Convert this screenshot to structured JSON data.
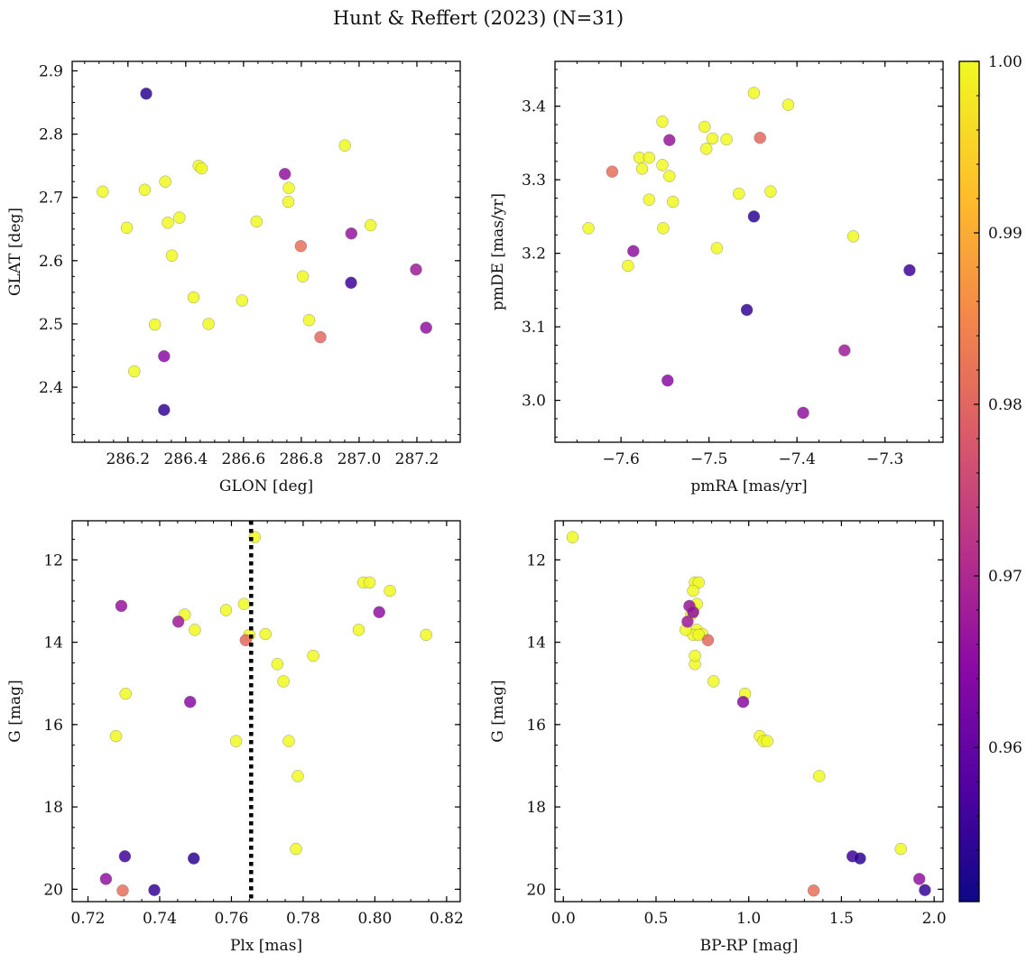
{
  "chart_data": {
    "title": "Hunt & Reffert (2023) (N=31)",
    "type": "scatter",
    "colorbar": {
      "min": 0.951,
      "max": 1.0,
      "ticks": [
        0.96,
        0.97,
        0.98,
        0.99,
        1.0
      ],
      "tick_labels": [
        "0.96",
        "0.97",
        "0.98",
        "0.99",
        "1.00"
      ],
      "colormap": [
        "#0d0887",
        "#5302a3",
        "#8b0aa5",
        "#b83289",
        "#db5c68",
        "#f48849",
        "#febd2a",
        "#f0f921"
      ]
    },
    "members": [
      {
        "glon": 286.263,
        "glat": 2.864,
        "pmra": -7.449,
        "pmde": 3.25,
        "plx": 0.7495,
        "bprp": 1.6,
        "g": 19.25,
        "prob": 0.954
      },
      {
        "glon": 286.325,
        "glat": 2.364,
        "pmra": -7.457,
        "pmde": 3.123,
        "plx": 0.7385,
        "bprp": 1.95,
        "g": 20.02,
        "prob": 0.955
      },
      {
        "glon": 286.972,
        "glat": 2.565,
        "pmra": -7.272,
        "pmde": 3.177,
        "plx": 0.7303,
        "bprp": 1.56,
        "g": 19.2,
        "prob": 0.956
      },
      {
        "glon": 286.743,
        "glat": 2.737,
        "pmra": -7.586,
        "pmde": 3.203,
        "plx": 0.725,
        "bprp": 1.92,
        "g": 19.75,
        "prob": 0.966
      },
      {
        "glon": 286.325,
        "glat": 2.449,
        "pmra": -7.547,
        "pmde": 3.027,
        "plx": 0.7485,
        "bprp": 0.97,
        "g": 15.45,
        "prob": 0.965
      },
      {
        "glon": 286.973,
        "glat": 2.643,
        "pmra": -7.545,
        "pmde": 3.354,
        "plx": 0.7293,
        "bprp": 0.68,
        "g": 13.12,
        "prob": 0.967
      },
      {
        "glon": 287.197,
        "glat": 2.586,
        "pmra": -7.346,
        "pmde": 3.068,
        "plx": 0.7452,
        "bprp": 0.67,
        "g": 13.5,
        "prob": 0.968
      },
      {
        "glon": 287.232,
        "glat": 2.494,
        "pmra": -7.393,
        "pmde": 2.983,
        "plx": 0.8012,
        "bprp": 0.7,
        "g": 13.27,
        "prob": 0.966
      },
      {
        "glon": 286.798,
        "glat": 2.623,
        "pmra": -7.61,
        "pmde": 3.311,
        "plx": 0.7297,
        "bprp": 1.35,
        "g": 20.03,
        "prob": 0.982
      },
      {
        "glon": 286.866,
        "glat": 2.479,
        "pmra": -7.442,
        "pmde": 3.357,
        "plx": 0.764,
        "bprp": 0.78,
        "g": 13.95,
        "prob": 0.981
      },
      {
        "glon": 286.113,
        "glat": 2.709,
        "pmra": -7.637,
        "pmde": 3.234,
        "plx": 0.7278,
        "bprp": 1.06,
        "g": 16.28,
        "prob": 1.0
      },
      {
        "glon": 286.196,
        "glat": 2.652,
        "pmra": -7.592,
        "pmde": 3.183,
        "plx": 0.7305,
        "bprp": 0.98,
        "g": 15.25,
        "prob": 1.0
      },
      {
        "glon": 286.222,
        "glat": 2.425,
        "pmra": -7.579,
        "pmde": 3.33,
        "plx": 0.747,
        "bprp": 0.69,
        "g": 13.33,
        "prob": 1.0
      },
      {
        "glon": 286.258,
        "glat": 2.712,
        "pmra": -7.576,
        "pmde": 3.315,
        "plx": 0.7498,
        "bprp": 0.72,
        "g": 13.7,
        "prob": 1.0
      },
      {
        "glon": 286.293,
        "glat": 2.499,
        "pmra": -7.568,
        "pmde": 3.33,
        "plx": 0.7585,
        "bprp": 0.7,
        "g": 13.22,
        "prob": 1.0
      },
      {
        "glon": 286.329,
        "glat": 2.725,
        "pmra": -7.568,
        "pmde": 3.273,
        "plx": 0.7635,
        "bprp": 0.72,
        "g": 13.07,
        "prob": 1.0
      },
      {
        "glon": 286.338,
        "glat": 2.66,
        "pmra": -7.553,
        "pmde": 3.379,
        "plx": 0.7665,
        "bprp": 0.05,
        "g": 11.45,
        "prob": 1.0
      },
      {
        "glon": 286.352,
        "glat": 2.608,
        "pmra": -7.553,
        "pmde": 3.32,
        "plx": 0.7695,
        "bprp": 0.75,
        "g": 13.8,
        "prob": 1.0
      },
      {
        "glon": 286.378,
        "glat": 2.668,
        "pmra": -7.552,
        "pmde": 3.234,
        "plx": 0.765,
        "bprp": 0.7,
        "g": 13.82,
        "prob": 1.0
      },
      {
        "glon": 286.427,
        "glat": 2.542,
        "pmra": -7.545,
        "pmde": 3.305,
        "plx": 0.7745,
        "bprp": 0.81,
        "g": 14.95,
        "prob": 1.0
      },
      {
        "glon": 286.445,
        "glat": 2.75,
        "pmra": -7.541,
        "pmde": 3.27,
        "plx": 0.7728,
        "bprp": 0.71,
        "g": 14.53,
        "prob": 1.0
      },
      {
        "glon": 286.455,
        "glat": 2.746,
        "pmra": -7.505,
        "pmde": 3.372,
        "plx": 0.7828,
        "bprp": 0.71,
        "g": 14.33,
        "prob": 1.0
      },
      {
        "glon": 286.479,
        "glat": 2.5,
        "pmra": -7.503,
        "pmde": 3.342,
        "plx": 0.7955,
        "bprp": 0.66,
        "g": 13.7,
        "prob": 1.0
      },
      {
        "glon": 286.595,
        "glat": 2.537,
        "pmra": -7.496,
        "pmde": 3.356,
        "plx": 0.7968,
        "bprp": 0.71,
        "g": 12.55,
        "prob": 1.0
      },
      {
        "glon": 286.645,
        "glat": 2.662,
        "pmra": -7.491,
        "pmde": 3.207,
        "plx": 0.7985,
        "bprp": 0.73,
        "g": 12.55,
        "prob": 1.0
      },
      {
        "glon": 286.757,
        "glat": 2.715,
        "pmra": -7.48,
        "pmde": 3.355,
        "plx": 0.8042,
        "bprp": 0.7,
        "g": 12.75,
        "prob": 1.0
      },
      {
        "glon": 286.755,
        "glat": 2.693,
        "pmra": -7.466,
        "pmde": 3.281,
        "plx": 0.8143,
        "bprp": 0.73,
        "g": 13.82,
        "prob": 1.0
      },
      {
        "glon": 286.805,
        "glat": 2.575,
        "pmra": -7.449,
        "pmde": 3.418,
        "plx": 0.7613,
        "bprp": 1.08,
        "g": 16.4,
        "prob": 1.0
      },
      {
        "glon": 286.827,
        "glat": 2.506,
        "pmra": -7.43,
        "pmde": 3.284,
        "plx": 0.776,
        "bprp": 1.1,
        "g": 16.4,
        "prob": 1.0
      },
      {
        "glon": 286.951,
        "glat": 2.782,
        "pmra": -7.41,
        "pmde": 3.402,
        "plx": 0.7785,
        "bprp": 1.38,
        "g": 17.25,
        "prob": 1.0
      },
      {
        "glon": 287.04,
        "glat": 2.656,
        "pmra": -7.336,
        "pmde": 3.223,
        "plx": 0.778,
        "bprp": 1.82,
        "g": 19.02,
        "prob": 1.0
      }
    ],
    "panels": [
      {
        "name": "glon-glat",
        "x": "glon",
        "y": "glat",
        "xlabel": "GLON [deg]",
        "ylabel": "GLAT [deg]",
        "xlim": [
          286.007,
          287.35
        ],
        "ylim": [
          2.313,
          2.915
        ],
        "invert_y": false,
        "xticks": [
          286.2,
          286.4,
          286.6,
          286.8,
          287.0,
          287.2
        ],
        "xtick_labels": [
          "286.2",
          "286.4",
          "286.6",
          "286.8",
          "287.0",
          "287.2"
        ],
        "yticks": [
          2.4,
          2.5,
          2.6,
          2.7,
          2.8,
          2.9
        ],
        "ytick_labels": [
          "2.4",
          "2.5",
          "2.6",
          "2.7",
          "2.8",
          "2.9"
        ],
        "xminor": 0.05,
        "yminor": 0.025
      },
      {
        "name": "pmra-pmde",
        "x": "pmra",
        "y": "pmde",
        "xlabel": "pmRA [mas/yr]",
        "ylabel": "pmDE [mas/yr]",
        "xlim": [
          -7.675,
          -7.234
        ],
        "ylim": [
          2.943,
          3.461
        ],
        "invert_y": false,
        "xticks": [
          -7.6,
          -7.5,
          -7.4,
          -7.3
        ],
        "xtick_labels": [
          "−7.6",
          "−7.5",
          "−7.4",
          "−7.3"
        ],
        "yticks": [
          3.0,
          3.1,
          3.2,
          3.3,
          3.4
        ],
        "ytick_labels": [
          "3.0",
          "3.1",
          "3.2",
          "3.3",
          "3.4"
        ],
        "xminor": 0.025,
        "yminor": 0.025
      },
      {
        "name": "plx-g",
        "x": "plx",
        "y": "g",
        "xlabel": "Plx [mas]",
        "ylabel": "G [mag]",
        "xlim": [
          0.7156,
          0.8238
        ],
        "ylim": [
          11.05,
          20.3
        ],
        "invert_y": true,
        "xticks": [
          0.72,
          0.74,
          0.76,
          0.78,
          0.8,
          0.82
        ],
        "xtick_labels": [
          "0.72",
          "0.74",
          "0.76",
          "0.78",
          "0.80",
          "0.82"
        ],
        "yticks": [
          12,
          14,
          16,
          18,
          20
        ],
        "ytick_labels": [
          "12",
          "14",
          "16",
          "18",
          "20"
        ],
        "xminor": 0.005,
        "yminor": 0.5,
        "vline": 0.7655
      },
      {
        "name": "bprp-g",
        "x": "bprp",
        "y": "g",
        "xlabel": "BP-RP [mag]",
        "ylabel": "G [mag]",
        "xlim": [
          -0.045,
          2.048
        ],
        "ylim": [
          11.05,
          20.3
        ],
        "invert_y": true,
        "xticks": [
          0.0,
          0.5,
          1.0,
          1.5,
          2.0
        ],
        "xtick_labels": [
          "0.0",
          "0.5",
          "1.0",
          "1.5",
          "2.0"
        ],
        "yticks": [
          12,
          14,
          16,
          18,
          20
        ],
        "ytick_labels": [
          "12",
          "14",
          "16",
          "18",
          "20"
        ],
        "xminor": 0.1,
        "yminor": 0.5
      }
    ]
  }
}
